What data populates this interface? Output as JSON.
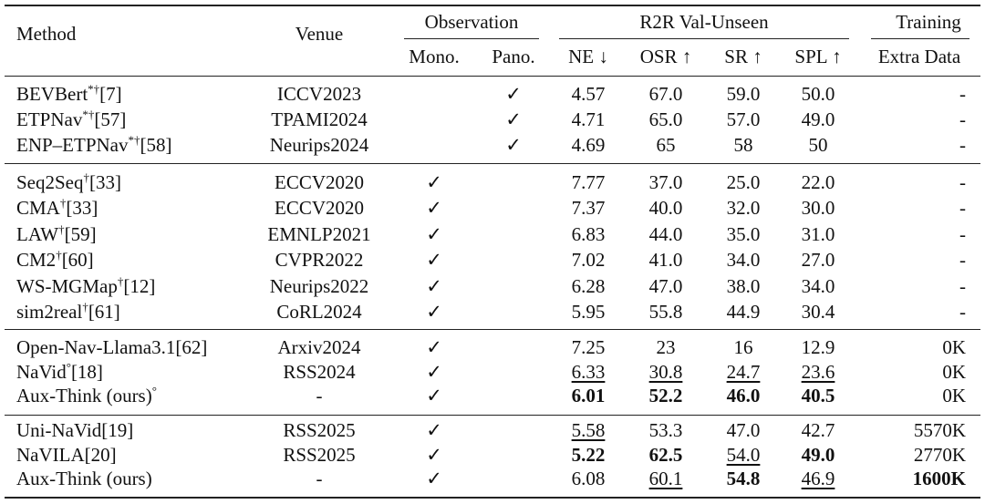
{
  "header": {
    "method": "Method",
    "venue": "Venue",
    "observation": "Observation",
    "mono": "Mono.",
    "pano": "Pano.",
    "r2r": "R2R Val-Unseen",
    "ne": "NE ↓",
    "osr": "OSR ↑",
    "sr": "SR ↑",
    "spl": "SPL ↑",
    "training": "Training",
    "extra": "Extra Data"
  },
  "groups": [
    [
      {
        "method": "BEVBert",
        "sup": "*†",
        "ref": "[7]",
        "venue": "ICCV2023",
        "pano": "✓",
        "ne": "4.57",
        "osr": "67.0",
        "sr": "59.0",
        "spl": "50.0",
        "extra": "-"
      },
      {
        "method": "ETPNav",
        "sup": "*†",
        "ref": "[57]",
        "venue": "TPAMI2024",
        "pano": "✓",
        "ne": "4.71",
        "osr": "65.0",
        "sr": "57.0",
        "spl": "49.0",
        "extra": "-"
      },
      {
        "method": "ENP–ETPNav",
        "sup": "*†",
        "ref": "[58]",
        "venue": "Neurips2024",
        "pano": "✓",
        "ne": "4.69",
        "osr": "65",
        "sr": "58",
        "spl": "50",
        "extra": "-"
      }
    ],
    [
      {
        "method": "Seq2Seq",
        "sup": "†",
        "ref": "[33]",
        "venue": "ECCV2020",
        "mono": "✓",
        "ne": "7.77",
        "osr": "37.0",
        "sr": "25.0",
        "spl": "22.0",
        "extra": "-"
      },
      {
        "method": "CMA",
        "sup": "†",
        "ref": "[33]",
        "venue": "ECCV2020",
        "mono": "✓",
        "ne": "7.37",
        "osr": "40.0",
        "sr": "32.0",
        "spl": "30.0",
        "extra": "-"
      },
      {
        "method": "LAW",
        "sup": "†",
        "ref": "[59]",
        "venue": "EMNLP2021",
        "mono": "✓",
        "ne": "6.83",
        "osr": "44.0",
        "sr": "35.0",
        "spl": "31.0",
        "extra": "-"
      },
      {
        "method": "CM2",
        "sup": "†",
        "ref": "[60]",
        "venue": "CVPR2022",
        "mono": "✓",
        "ne": "7.02",
        "osr": "41.0",
        "sr": "34.0",
        "spl": "27.0",
        "extra": "-"
      },
      {
        "method": "WS-MGMap",
        "sup": "†",
        "ref": "[12]",
        "venue": "Neurips2022",
        "mono": "✓",
        "ne": "6.28",
        "osr": "47.0",
        "sr": "38.0",
        "spl": "34.0",
        "extra": "-"
      },
      {
        "method": "sim2real",
        "sup": "†",
        "ref": "[61]",
        "venue": "CoRL2024",
        "mono": "✓",
        "ne": "5.95",
        "osr": "55.8",
        "sr": "44.9",
        "spl": "30.4",
        "extra": "-"
      }
    ],
    [
      {
        "method": "Open-Nav-Llama3.1",
        "ref": "[62]",
        "venue": "Arxiv2024",
        "mono": "✓",
        "ne": "7.25",
        "osr": "23",
        "sr": "16",
        "spl": "12.9",
        "extra": "0K"
      },
      {
        "method": "NaVid",
        "sup": "°",
        "ref": "[18]",
        "venue": "RSS2024",
        "mono": "✓",
        "ne": "6.33",
        "osr": "30.8",
        "sr": "24.7",
        "spl": "23.6",
        "extra": "0K",
        "underline": [
          "ne",
          "osr",
          "sr",
          "spl"
        ]
      },
      {
        "method": "Aux-Think (ours)",
        "sup": "°",
        "venue": "-",
        "mono": "✓",
        "ne": "6.01",
        "osr": "52.2",
        "sr": "46.0",
        "spl": "40.5",
        "extra": "0K",
        "bold": [
          "ne",
          "osr",
          "sr",
          "spl"
        ]
      }
    ],
    [
      {
        "method": "Uni-NaVid",
        "ref": "[19]",
        "venue": "RSS2025",
        "mono": "✓",
        "ne": "5.58",
        "osr": "53.3",
        "sr": "47.0",
        "spl": "42.7",
        "extra": "5570K",
        "underline": [
          "ne"
        ]
      },
      {
        "method": "NaVILA",
        "ref": "[20]",
        "venue": "RSS2025",
        "mono": "✓",
        "ne": "5.22",
        "osr": "62.5",
        "sr": "54.0",
        "spl": "49.0",
        "extra": "2770K",
        "bold": [
          "ne",
          "osr",
          "spl"
        ],
        "underline": [
          "sr"
        ]
      },
      {
        "method": "Aux-Think (ours)",
        "venue": "-",
        "mono": "✓",
        "ne": "6.08",
        "osr": "60.1",
        "sr": "54.8",
        "spl": "46.9",
        "extra": "1600K",
        "underline": [
          "osr",
          "spl"
        ],
        "bold": [
          "sr",
          "extra"
        ]
      }
    ]
  ]
}
